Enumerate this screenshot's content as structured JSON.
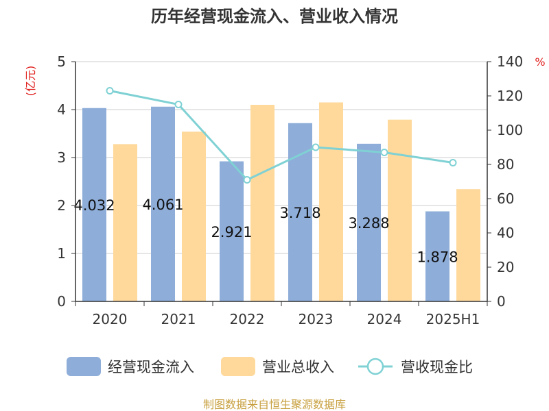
{
  "chart_data": {
    "type": "bar",
    "title": "历年经营现金流入、营业收入情况",
    "categories": [
      "2020",
      "2021",
      "2022",
      "2023",
      "2024",
      "2025H1"
    ],
    "series": [
      {
        "name": "经营现金流入",
        "kind": "bar",
        "axis": "left",
        "color": "#8eadd9",
        "values": [
          4.032,
          4.061,
          2.921,
          3.718,
          3.288,
          1.878
        ],
        "labels": [
          "4.032",
          "4.061",
          "2.921",
          "3.718",
          "3.288",
          "1.878"
        ]
      },
      {
        "name": "营业总收入",
        "kind": "bar",
        "axis": "left",
        "color": "#fed99b",
        "values": [
          3.28,
          3.54,
          4.1,
          4.15,
          3.79,
          2.34
        ]
      },
      {
        "name": "营收现金比",
        "kind": "line",
        "axis": "right",
        "color": "#7fd1d4",
        "values": [
          123,
          115,
          71,
          90,
          87,
          81
        ]
      }
    ],
    "y_left": {
      "unit": "(亿元)",
      "min": 0,
      "max": 5,
      "ticks": [
        "0",
        "1",
        "2",
        "3",
        "4",
        "5"
      ]
    },
    "y_right": {
      "unit": "%",
      "min": 0,
      "max": 140,
      "ticks": [
        "0",
        "20",
        "40",
        "60",
        "80",
        "100",
        "120",
        "140"
      ]
    },
    "grid": true,
    "legend_position": "bottom"
  },
  "source": "制图数据来自恒生聚源数据库"
}
